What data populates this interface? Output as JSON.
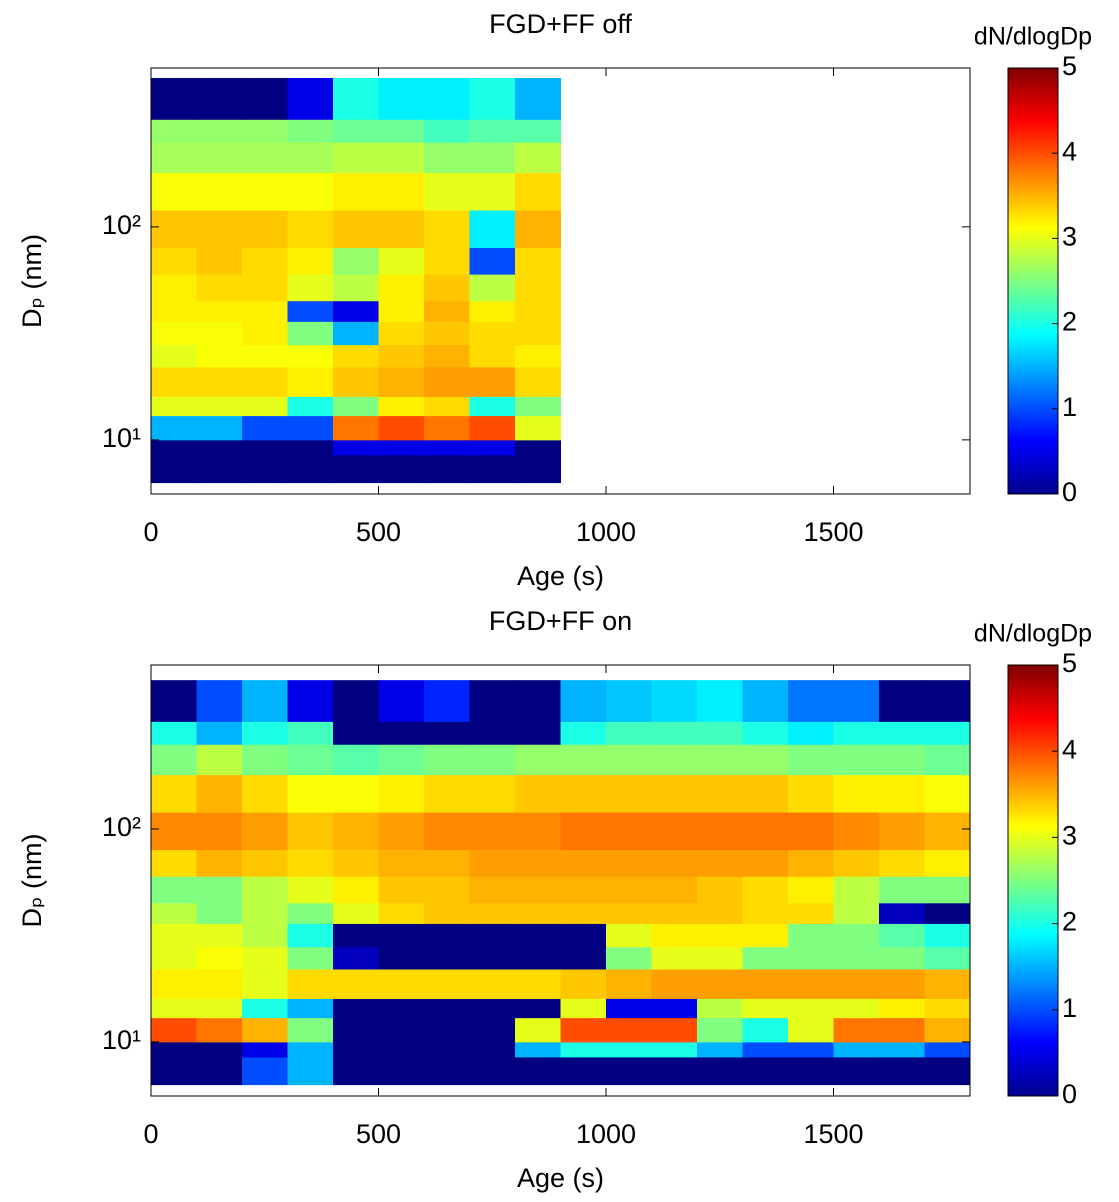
{
  "chart_data": [
    {
      "type": "heatmap",
      "title": "FGD+FF off",
      "x_label": "Age (s)",
      "y_label": "Dₚ (nm)",
      "colormap": "jet",
      "log_y": true,
      "xlim": [
        0,
        1800
      ],
      "xticks": [
        0,
        500,
        1000,
        1500
      ],
      "ylim": [
        5.57,
        557
      ],
      "yticks": [
        {
          "value": 10,
          "label": "10¹"
        },
        {
          "value": 100,
          "label": "10²"
        }
      ],
      "colorbar": {
        "label": "dN/dlogDp",
        "lim": [
          0,
          5
        ],
        "ticks": [
          0,
          1,
          2,
          3,
          4,
          5
        ]
      },
      "x_bins": [
        0,
        100,
        200,
        300,
        400,
        500,
        600,
        700,
        800,
        900
      ],
      "y_bins": [
        6.3,
        8.5,
        10,
        13,
        16,
        22,
        28,
        36,
        45,
        60,
        80,
        120,
        180,
        250,
        320,
        500
      ],
      "z": [
        [
          0,
          0,
          0,
          0,
          0,
          0,
          0,
          0,
          0
        ],
        [
          0,
          0,
          0,
          0,
          0.5,
          0.5,
          0.5,
          0.5,
          0
        ],
        [
          1.5,
          1.5,
          1.0,
          1.0,
          3.8,
          4.0,
          3.8,
          4.0,
          3.0
        ],
        [
          3.0,
          3.0,
          3.0,
          2.0,
          2.5,
          3.2,
          3.3,
          2.0,
          2.5
        ],
        [
          3.3,
          3.3,
          3.3,
          3.2,
          3.4,
          3.5,
          3.6,
          3.6,
          3.3
        ],
        [
          3.0,
          3.1,
          3.1,
          3.1,
          3.3,
          3.4,
          3.5,
          3.3,
          3.2
        ],
        [
          3.1,
          3.1,
          3.2,
          2.5,
          1.5,
          3.3,
          3.4,
          3.3,
          3.3
        ],
        [
          3.2,
          3.2,
          3.2,
          1.0,
          0.5,
          3.2,
          3.5,
          3.2,
          3.3
        ],
        [
          3.2,
          3.3,
          3.3,
          3.0,
          2.8,
          3.2,
          3.4,
          2.8,
          3.3
        ],
        [
          3.3,
          3.4,
          3.3,
          3.2,
          2.6,
          3.0,
          3.3,
          1.0,
          3.3
        ],
        [
          3.4,
          3.4,
          3.4,
          3.3,
          3.4,
          3.4,
          3.3,
          1.8,
          3.5
        ],
        [
          3.1,
          3.1,
          3.1,
          3.1,
          3.2,
          3.2,
          3.0,
          3.0,
          3.3
        ],
        [
          2.7,
          2.7,
          2.7,
          2.7,
          2.8,
          2.8,
          2.6,
          2.6,
          2.8
        ],
        [
          2.6,
          2.6,
          2.6,
          2.5,
          2.4,
          2.4,
          2.2,
          2.3,
          2.3
        ],
        [
          0,
          0,
          0,
          0.5,
          2.0,
          1.8,
          1.8,
          2.0,
          1.5
        ]
      ]
    },
    {
      "type": "heatmap",
      "title": "FGD+FF on",
      "x_label": "Age (s)",
      "y_label": "Dₚ (nm)",
      "colormap": "jet",
      "log_y": true,
      "xlim": [
        0,
        1800
      ],
      "xticks": [
        0,
        500,
        1000,
        1500
      ],
      "ylim": [
        5.57,
        589
      ],
      "yticks": [
        {
          "value": 10,
          "label": "10¹"
        },
        {
          "value": 100,
          "label": "10²"
        }
      ],
      "colorbar": {
        "label": "dN/dlogDp",
        "lim": [
          0,
          5
        ],
        "ticks": [
          0,
          1,
          2,
          3,
          4,
          5
        ]
      },
      "x_bins": [
        0,
        100,
        200,
        300,
        400,
        500,
        600,
        700,
        800,
        900,
        1000,
        1100,
        1200,
        1300,
        1400,
        1500,
        1600,
        1700,
        1800
      ],
      "y_bins": [
        6.3,
        8.5,
        10,
        13,
        16,
        22,
        28,
        36,
        45,
        60,
        80,
        120,
        180,
        250,
        320,
        500
      ],
      "z": [
        [
          0,
          0,
          1.0,
          1.5,
          0,
          0,
          0,
          0,
          0,
          0,
          0,
          0,
          0,
          0,
          0,
          0,
          0,
          0
        ],
        [
          0,
          0,
          0.5,
          1.5,
          0,
          0,
          0,
          0,
          1.5,
          2.0,
          2.0,
          2.0,
          1.5,
          1.0,
          1.0,
          1.5,
          1.5,
          1.0
        ],
        [
          4.0,
          3.8,
          3.5,
          2.5,
          0,
          0,
          0,
          0,
          3.0,
          4.0,
          4.0,
          4.0,
          2.5,
          2.0,
          3.0,
          3.8,
          3.8,
          3.5
        ],
        [
          3.0,
          3.0,
          2.0,
          1.5,
          0,
          0,
          0,
          0,
          0,
          3.0,
          0.5,
          0.5,
          2.8,
          3.0,
          3.0,
          3.0,
          3.2,
          3.3
        ],
        [
          3.2,
          3.2,
          3.0,
          3.3,
          3.3,
          3.3,
          3.3,
          3.3,
          3.3,
          3.4,
          3.5,
          3.6,
          3.6,
          3.6,
          3.6,
          3.6,
          3.6,
          3.5
        ],
        [
          3.0,
          3.1,
          3.0,
          2.5,
          0.3,
          0,
          0,
          0,
          0,
          0,
          2.5,
          3.0,
          3.0,
          2.5,
          2.5,
          2.5,
          2.5,
          2.3
        ],
        [
          3.0,
          3.0,
          2.8,
          2.0,
          0,
          0,
          0,
          0,
          0,
          0,
          3.0,
          3.2,
          3.2,
          3.2,
          2.5,
          2.5,
          2.3,
          2.0
        ],
        [
          2.8,
          2.5,
          2.8,
          2.5,
          3.0,
          3.3,
          3.4,
          3.4,
          3.4,
          3.4,
          3.4,
          3.4,
          3.4,
          3.3,
          3.3,
          2.8,
          0.3,
          0
        ],
        [
          2.5,
          2.5,
          2.8,
          3.0,
          3.2,
          3.4,
          3.4,
          3.5,
          3.5,
          3.5,
          3.5,
          3.5,
          3.4,
          3.3,
          3.2,
          2.8,
          2.5,
          2.5
        ],
        [
          3.3,
          3.5,
          3.4,
          3.3,
          3.4,
          3.5,
          3.5,
          3.6,
          3.6,
          3.6,
          3.6,
          3.6,
          3.6,
          3.6,
          3.5,
          3.4,
          3.3,
          3.2
        ],
        [
          3.7,
          3.7,
          3.6,
          3.4,
          3.5,
          3.6,
          3.7,
          3.7,
          3.7,
          3.8,
          3.8,
          3.8,
          3.8,
          3.8,
          3.8,
          3.7,
          3.6,
          3.5
        ],
        [
          3.3,
          3.5,
          3.3,
          3.1,
          3.1,
          3.2,
          3.3,
          3.3,
          3.4,
          3.4,
          3.4,
          3.4,
          3.4,
          3.4,
          3.3,
          3.2,
          3.2,
          3.1
        ],
        [
          2.5,
          2.8,
          2.5,
          2.4,
          2.3,
          2.4,
          2.5,
          2.5,
          2.6,
          2.6,
          2.6,
          2.6,
          2.6,
          2.6,
          2.5,
          2.5,
          2.5,
          2.4
        ],
        [
          2.0,
          1.5,
          2.0,
          2.2,
          0,
          0,
          0,
          0,
          0,
          2.0,
          2.2,
          2.2,
          2.2,
          2.0,
          1.8,
          2.0,
          2.0,
          2.0
        ],
        [
          0,
          1.0,
          1.5,
          0.5,
          0,
          0.5,
          0.8,
          0,
          0,
          1.5,
          1.6,
          1.7,
          1.8,
          1.5,
          1.2,
          1.2,
          0,
          0
        ]
      ]
    }
  ]
}
